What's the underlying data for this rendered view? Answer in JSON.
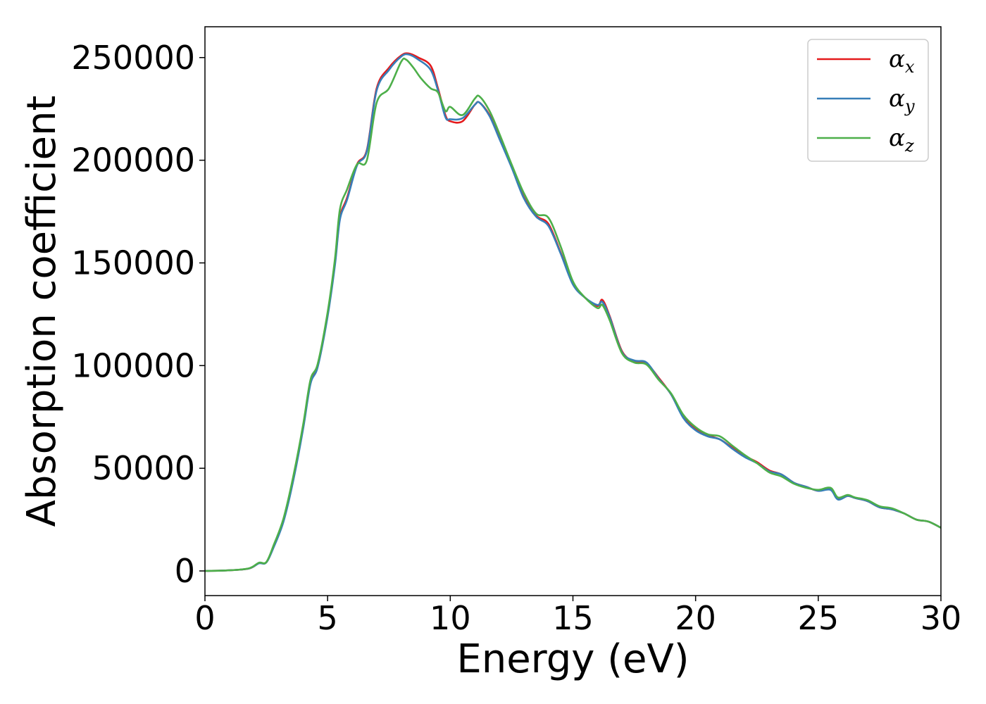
{
  "chart_data": {
    "type": "line",
    "title": "",
    "xlabel": "Energy (eV)",
    "ylabel": "Absorption coefficient",
    "xlim": [
      0,
      30
    ],
    "ylim": [
      -12000,
      265000
    ],
    "xticks": [
      0,
      5,
      10,
      15,
      20,
      25,
      30
    ],
    "xtick_labels": [
      "0",
      "5",
      "10",
      "15",
      "20",
      "25",
      "30"
    ],
    "yticks": [
      0,
      50000,
      100000,
      150000,
      200000,
      250000
    ],
    "ytick_labels": [
      "0",
      "50000",
      "100000",
      "150000",
      "200000",
      "250000"
    ],
    "grid": false,
    "legend_position": "top-right",
    "series": [
      {
        "name": "α_x",
        "legend_symbol": "α",
        "legend_sub": "x",
        "color": "#e41a1c",
        "points": [
          [
            0,
            0
          ],
          [
            1,
            300
          ],
          [
            1.8,
            1200
          ],
          [
            2.2,
            3800
          ],
          [
            2.5,
            4200
          ],
          [
            2.8,
            12000
          ],
          [
            3.2,
            25000
          ],
          [
            3.6,
            45000
          ],
          [
            4,
            70000
          ],
          [
            4.3,
            92000
          ],
          [
            4.6,
            100000
          ],
          [
            5,
            125000
          ],
          [
            5.3,
            150000
          ],
          [
            5.5,
            172000
          ],
          [
            5.8,
            182000
          ],
          [
            6.2,
            198000
          ],
          [
            6.6,
            205000
          ],
          [
            7,
            235000
          ],
          [
            7.5,
            245000
          ],
          [
            8,
            251000
          ],
          [
            8.3,
            252000
          ],
          [
            8.7,
            250000
          ],
          [
            9.2,
            246000
          ],
          [
            9.5,
            235000
          ],
          [
            9.8,
            222000
          ],
          [
            10,
            219000
          ],
          [
            10.5,
            219000
          ],
          [
            11,
            227000
          ],
          [
            11.2,
            228000
          ],
          [
            11.6,
            222000
          ],
          [
            12,
            211000
          ],
          [
            12.5,
            197000
          ],
          [
            13,
            182000
          ],
          [
            13.5,
            173000
          ],
          [
            14,
            169000
          ],
          [
            14.5,
            155000
          ],
          [
            15,
            140000
          ],
          [
            15.5,
            133000
          ],
          [
            16,
            129000
          ],
          [
            16.2,
            132000
          ],
          [
            16.5,
            124000
          ],
          [
            17,
            107000
          ],
          [
            17.5,
            102000
          ],
          [
            18,
            101000
          ],
          [
            18.5,
            94000
          ],
          [
            19,
            86000
          ],
          [
            19.5,
            75000
          ],
          [
            20,
            69000
          ],
          [
            20.5,
            66000
          ],
          [
            21,
            64000
          ],
          [
            21.5,
            60000
          ],
          [
            22,
            56000
          ],
          [
            22.5,
            53000
          ],
          [
            23,
            49000
          ],
          [
            23.5,
            47000
          ],
          [
            24,
            43000
          ],
          [
            24.5,
            41000
          ],
          [
            25,
            39000
          ],
          [
            25.5,
            40000
          ],
          [
            25.8,
            35000
          ],
          [
            26.2,
            36500
          ],
          [
            26.5,
            35500
          ],
          [
            27,
            34000
          ],
          [
            27.5,
            31000
          ],
          [
            28,
            30000
          ],
          [
            28.5,
            28000
          ],
          [
            29,
            25000
          ],
          [
            29.5,
            24000
          ],
          [
            30,
            21000
          ]
        ]
      },
      {
        "name": "α_y",
        "legend_symbol": "α",
        "legend_sub": "y",
        "color": "#377eb8",
        "points": [
          [
            0,
            0
          ],
          [
            1,
            300
          ],
          [
            1.8,
            1200
          ],
          [
            2.2,
            3700
          ],
          [
            2.5,
            4100
          ],
          [
            2.8,
            11500
          ],
          [
            3.2,
            24000
          ],
          [
            3.6,
            44000
          ],
          [
            4,
            69000
          ],
          [
            4.3,
            91000
          ],
          [
            4.6,
            99500
          ],
          [
            5,
            124000
          ],
          [
            5.3,
            149000
          ],
          [
            5.5,
            171000
          ],
          [
            5.8,
            181000
          ],
          [
            6.2,
            197500
          ],
          [
            6.6,
            204500
          ],
          [
            7,
            234000
          ],
          [
            7.5,
            244000
          ],
          [
            8,
            250500
          ],
          [
            8.3,
            251500
          ],
          [
            8.7,
            249000
          ],
          [
            9.2,
            244000
          ],
          [
            9.5,
            234000
          ],
          [
            9.8,
            221000
          ],
          [
            10,
            220000
          ],
          [
            10.5,
            220500
          ],
          [
            11,
            227000
          ],
          [
            11.2,
            228000
          ],
          [
            11.6,
            221500
          ],
          [
            12,
            210500
          ],
          [
            12.5,
            196500
          ],
          [
            13,
            181500
          ],
          [
            13.5,
            172500
          ],
          [
            14,
            168000
          ],
          [
            14.5,
            154500
          ],
          [
            15,
            139500
          ],
          [
            15.5,
            133000
          ],
          [
            16,
            129500
          ],
          [
            16.2,
            131000
          ],
          [
            16.5,
            123500
          ],
          [
            17,
            106500
          ],
          [
            17.5,
            102500
          ],
          [
            18,
            101500
          ],
          [
            18.5,
            93500
          ],
          [
            19,
            86000
          ],
          [
            19.5,
            74500
          ],
          [
            20,
            68500
          ],
          [
            20.5,
            65500
          ],
          [
            21,
            64000
          ],
          [
            21.5,
            59500
          ],
          [
            22,
            55500
          ],
          [
            22.5,
            52500
          ],
          [
            23,
            48500
          ],
          [
            23.5,
            47000
          ],
          [
            24,
            43000
          ],
          [
            24.5,
            41000
          ],
          [
            25,
            39000
          ],
          [
            25.5,
            39500
          ],
          [
            25.8,
            34800
          ],
          [
            26.2,
            36500
          ],
          [
            26.5,
            35500
          ],
          [
            27,
            34000
          ],
          [
            27.5,
            31000
          ],
          [
            28,
            30000
          ],
          [
            28.5,
            28000
          ],
          [
            29,
            25000
          ],
          [
            29.5,
            24000
          ],
          [
            30,
            21000
          ]
        ]
      },
      {
        "name": "α_z",
        "legend_symbol": "α",
        "legend_sub": "z",
        "color": "#4daf4a",
        "points": [
          [
            0,
            0
          ],
          [
            1,
            300
          ],
          [
            1.8,
            1300
          ],
          [
            2.2,
            4000
          ],
          [
            2.5,
            4300
          ],
          [
            2.8,
            12500
          ],
          [
            3.2,
            25500
          ],
          [
            3.6,
            46000
          ],
          [
            4,
            71000
          ],
          [
            4.3,
            93000
          ],
          [
            4.6,
            101000
          ],
          [
            5,
            126000
          ],
          [
            5.3,
            152000
          ],
          [
            5.5,
            176000
          ],
          [
            5.8,
            186000
          ],
          [
            6.2,
            198000
          ],
          [
            6.6,
            200000
          ],
          [
            7,
            228000
          ],
          [
            7.5,
            235000
          ],
          [
            8,
            248000
          ],
          [
            8.2,
            249000
          ],
          [
            8.5,
            245000
          ],
          [
            8.8,
            240000
          ],
          [
            9.2,
            235000
          ],
          [
            9.5,
            233000
          ],
          [
            9.8,
            224000
          ],
          [
            10,
            226000
          ],
          [
            10.5,
            222000
          ],
          [
            11,
            230000
          ],
          [
            11.2,
            231000
          ],
          [
            11.6,
            224000
          ],
          [
            12,
            213000
          ],
          [
            12.5,
            198000
          ],
          [
            13,
            184000
          ],
          [
            13.5,
            174000
          ],
          [
            14,
            172000
          ],
          [
            14.5,
            158000
          ],
          [
            15,
            141000
          ],
          [
            15.5,
            133000
          ],
          [
            16,
            128000
          ],
          [
            16.2,
            129500
          ],
          [
            16.5,
            122000
          ],
          [
            17,
            106000
          ],
          [
            17.5,
            101500
          ],
          [
            18,
            100500
          ],
          [
            18.5,
            93000
          ],
          [
            19,
            86500
          ],
          [
            19.5,
            76000
          ],
          [
            20,
            70000
          ],
          [
            20.5,
            66500
          ],
          [
            21,
            65500
          ],
          [
            21.5,
            61000
          ],
          [
            22,
            56500
          ],
          [
            22.5,
            52500
          ],
          [
            23,
            48000
          ],
          [
            23.5,
            46000
          ],
          [
            24,
            42500
          ],
          [
            24.5,
            40500
          ],
          [
            25,
            39500
          ],
          [
            25.5,
            40500
          ],
          [
            25.8,
            35800
          ],
          [
            26.2,
            37000
          ],
          [
            26.5,
            35800
          ],
          [
            27,
            34500
          ],
          [
            27.5,
            31500
          ],
          [
            28,
            30500
          ],
          [
            28.5,
            28000
          ],
          [
            29,
            25000
          ],
          [
            29.5,
            24000
          ],
          [
            30,
            21000
          ]
        ]
      }
    ]
  }
}
